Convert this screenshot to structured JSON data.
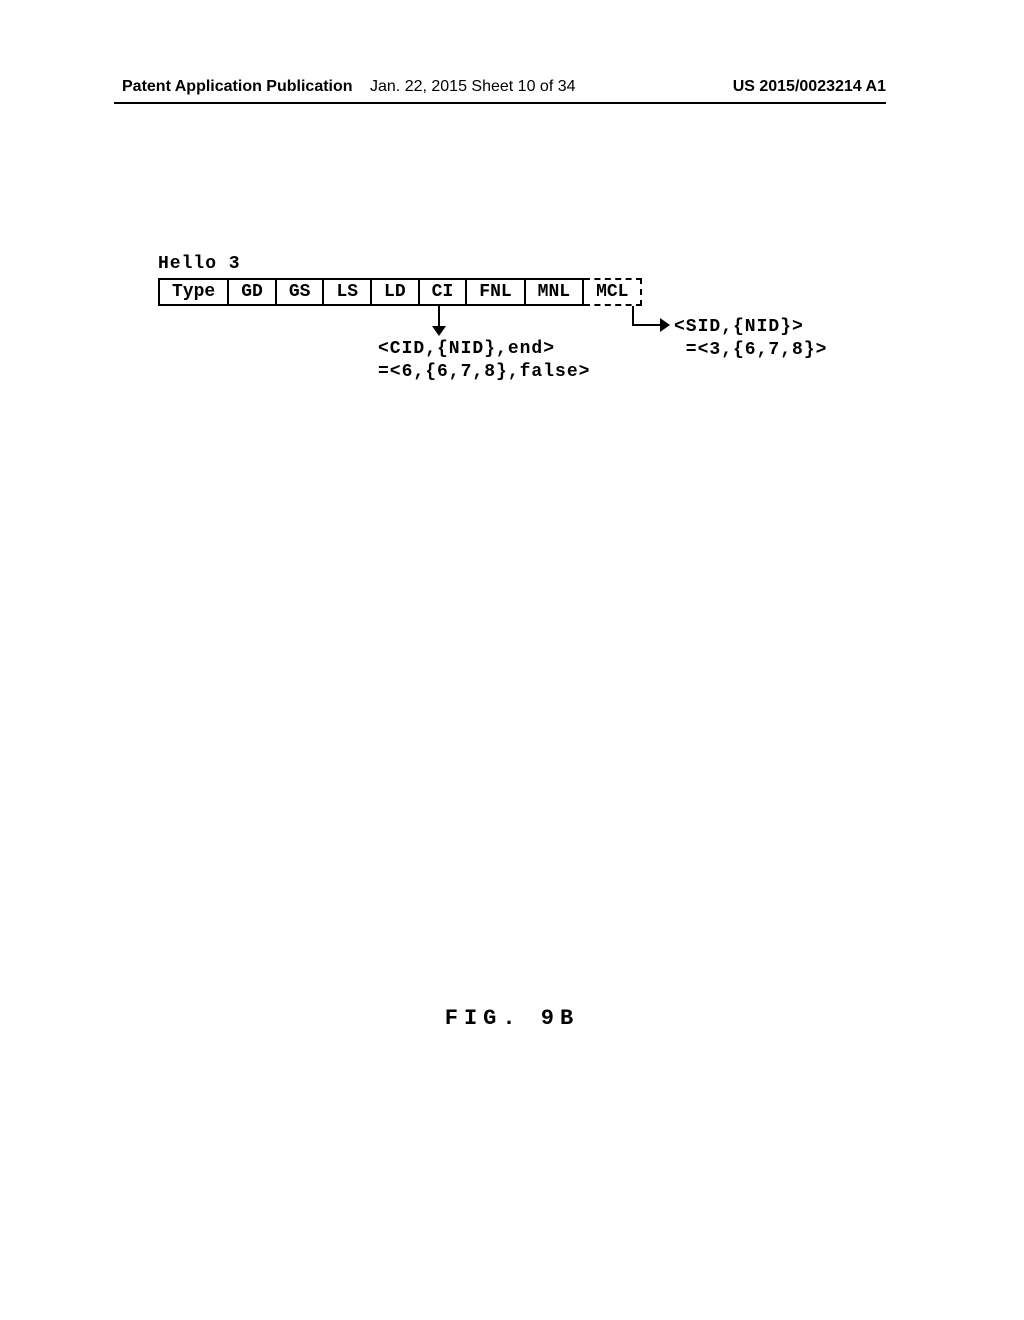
{
  "header": {
    "left": "Patent Application Publication",
    "center": "Jan. 22, 2015  Sheet 10 of 34",
    "right": "US 2015/0023214 A1"
  },
  "diagram": {
    "hello_label": "Hello 3",
    "cells": [
      "Type",
      "GD",
      "GS",
      "LS",
      "LD",
      "CI",
      "FNL",
      "MNL",
      "MCL"
    ],
    "ci_annotation": "<CID,{NID},end>\n=<6,{6,7,8},false>",
    "mcl_annotation": "<SID,{NID}>\n =<3,{6,7,8}>",
    "background_color": "#ffffff",
    "text_color": "#000000",
    "border_color": "#000000",
    "cell_fontsize": 18,
    "font_family": "Courier New"
  },
  "figure_label": "FIG. 9B"
}
